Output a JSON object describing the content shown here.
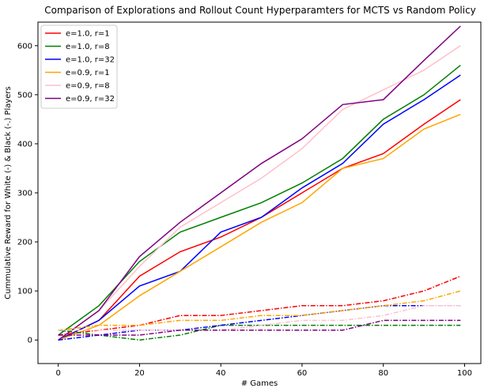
{
  "chart_data": {
    "type": "line",
    "title": "Comparison of Explorations and Rollout Count Hyperparamters for MCTS vs Random Policy",
    "xlabel": "# Games",
    "ylabel": "Cummulative Reward for White (-)  & Black (-.) Players",
    "xlim": [
      -5,
      104
    ],
    "ylim": [
      -48,
      648
    ],
    "xticks": [
      0,
      20,
      40,
      60,
      80,
      100
    ],
    "yticks": [
      0,
      100,
      200,
      300,
      400,
      500,
      600
    ],
    "grid": false,
    "legend_position": "top-left",
    "x": [
      0,
      10,
      20,
      30,
      40,
      50,
      60,
      70,
      80,
      90,
      99
    ],
    "series": [
      {
        "name": "e=1.0, r=1",
        "color": "#ff0000",
        "player": "white",
        "values": [
          0,
          40,
          130,
          180,
          210,
          250,
          300,
          350,
          380,
          440,
          490
        ]
      },
      {
        "name": "e=1.0, r=8",
        "color": "#008000",
        "player": "white",
        "values": [
          10,
          70,
          160,
          220,
          250,
          280,
          320,
          370,
          450,
          500,
          560
        ]
      },
      {
        "name": "e=1.0, r=32",
        "color": "#0000ff",
        "player": "white",
        "values": [
          0,
          40,
          110,
          140,
          220,
          250,
          310,
          360,
          440,
          490,
          540
        ]
      },
      {
        "name": "e=0.9, r=1",
        "color": "#ffa500",
        "player": "white",
        "values": [
          0,
          30,
          90,
          140,
          190,
          240,
          280,
          350,
          370,
          430,
          460
        ]
      },
      {
        "name": "e=0.9, r=8",
        "color": "#ffc0cb",
        "player": "white",
        "values": [
          0,
          60,
          150,
          230,
          280,
          330,
          390,
          470,
          510,
          550,
          600
        ]
      },
      {
        "name": "e=0.9, r=32",
        "color": "#800080",
        "player": "white",
        "values": [
          0,
          60,
          170,
          240,
          300,
          360,
          410,
          480,
          490,
          570,
          640
        ]
      },
      {
        "name": "",
        "color": "#ff0000",
        "player": "black",
        "values": [
          10,
          20,
          30,
          50,
          50,
          60,
          70,
          70,
          80,
          100,
          130
        ]
      },
      {
        "name": "",
        "color": "#008000",
        "player": "black",
        "values": [
          20,
          10,
          0,
          10,
          30,
          30,
          30,
          30,
          30,
          30,
          30
        ]
      },
      {
        "name": "",
        "color": "#0000ff",
        "player": "black",
        "values": [
          0,
          10,
          20,
          20,
          30,
          40,
          50,
          60,
          70,
          70,
          70
        ]
      },
      {
        "name": "",
        "color": "#ffa500",
        "player": "black",
        "values": [
          20,
          30,
          30,
          40,
          40,
          50,
          50,
          60,
          70,
          80,
          100
        ]
      },
      {
        "name": "",
        "color": "#ffc0cb",
        "player": "black",
        "values": [
          20,
          20,
          20,
          20,
          20,
          30,
          40,
          40,
          50,
          70,
          70
        ]
      },
      {
        "name": "",
        "color": "#800080",
        "player": "black",
        "values": [
          10,
          10,
          10,
          20,
          20,
          20,
          20,
          20,
          40,
          40,
          40
        ]
      }
    ]
  }
}
